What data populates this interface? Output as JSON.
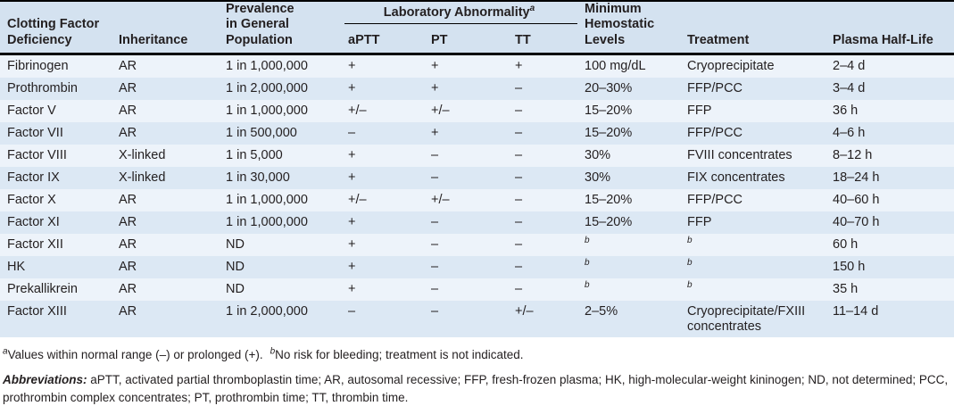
{
  "colors": {
    "header_bg": "#d4e2f0",
    "row_light": "#edf3fa",
    "row_dark": "#dce8f4",
    "rule": "#000000",
    "text": "#231f20"
  },
  "table": {
    "headers": {
      "col1": "Clotting Factor\nDeficiency",
      "col2": "Inheritance",
      "col3": "Prevalence\nin General\nPopulation",
      "lab_group": {
        "label": "Laboratory Abnormality",
        "sup": "a",
        "sub": [
          "aPTT",
          "PT",
          "TT"
        ]
      },
      "col7": "Minimum\nHemostatic\nLevels",
      "col8": "Treatment",
      "col9": "Plasma Half-Life"
    },
    "rows": [
      [
        "Fibrinogen",
        "AR",
        "1 in 1,000,000",
        "+",
        "+",
        "+",
        "100 mg/dL",
        "Cryoprecipitate",
        "2–4 d"
      ],
      [
        "Prothrombin",
        "AR",
        "1 in 2,000,000",
        "+",
        "+",
        "–",
        "20–30%",
        "FFP/PCC",
        "3–4 d"
      ],
      [
        "Factor V",
        "AR",
        "1 in 1,000,000",
        "+/–",
        "+/–",
        "–",
        "15–20%",
        "FFP",
        "36 h"
      ],
      [
        "Factor VII",
        "AR",
        "1 in 500,000",
        "–",
        "+",
        "–",
        "15–20%",
        "FFP/PCC",
        "4–6 h"
      ],
      [
        "Factor VIII",
        "X-linked",
        "1 in 5,000",
        "+",
        "–",
        "–",
        "30%",
        "FVIII concentrates",
        "8–12 h"
      ],
      [
        "Factor IX",
        "X-linked",
        "1 in 30,000",
        "+",
        "–",
        "–",
        "30%",
        "FIX concentrates",
        "18–24 h"
      ],
      [
        "Factor X",
        "AR",
        "1 in 1,000,000",
        "+/–",
        "+/–",
        "–",
        "15–20%",
        "FFP/PCC",
        "40–60 h"
      ],
      [
        "Factor XI",
        "AR",
        "1 in 1,000,000",
        "+",
        "–",
        "–",
        "15–20%",
        "FFP",
        "40–70 h"
      ],
      [
        "Factor XII",
        "AR",
        "ND",
        "+",
        "–",
        "–",
        "^b",
        "^b",
        "60 h"
      ],
      [
        "HK",
        "AR",
        "ND",
        "+",
        "–",
        "–",
        "^b",
        "^b",
        "150 h"
      ],
      [
        "Prekallikrein",
        "AR",
        "ND",
        "+",
        "–",
        "–",
        "^b",
        "^b",
        "35 h"
      ],
      [
        "Factor XIII",
        "AR",
        "1 in 2,000,000",
        "–",
        "–",
        "+/–",
        "2–5%",
        "Cryoprecipitate/FXIII concentrates",
        "11–14 d"
      ]
    ]
  },
  "footnotes": {
    "a_sup": "a",
    "a_text": "Values within normal range (–) or prolonged (+).",
    "b_sup": "b",
    "b_text": "No risk for bleeding; treatment is not indicated.",
    "abbr_label": "Abbreviations:",
    "abbr_text": " aPTT, activated partial thromboplastin time; AR, autosomal recessive; FFP, fresh-frozen plasma; HK, high-molecular-weight kininogen; ND, not determined; PCC, prothrom­bin complex concentrates; PT, prothrombin time; TT, thrombin time."
  }
}
